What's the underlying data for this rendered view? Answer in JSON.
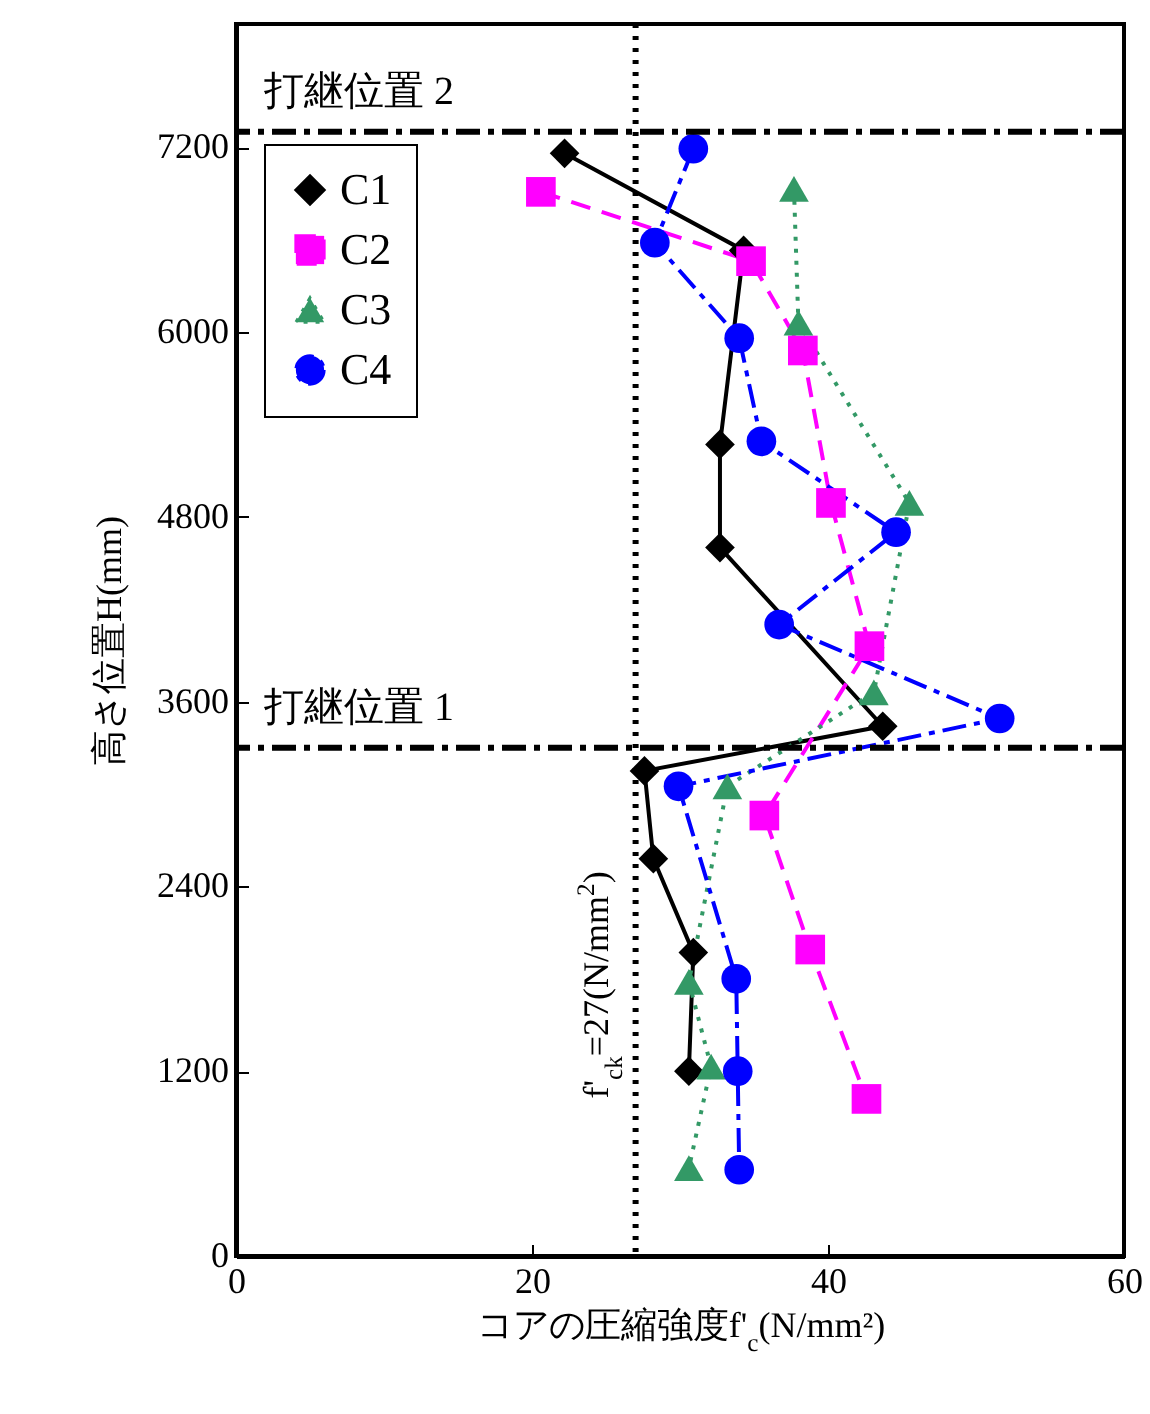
{
  "chart_data": {
    "type": "line",
    "xlabel": "コアの圧縮強度f'$_{c}$(N/mm²)",
    "ylabel": "高さ位置H(mm)",
    "xlim": [
      0,
      60
    ],
    "xticks": [
      0,
      20,
      40,
      60
    ],
    "ylim": [
      0,
      8000
    ],
    "yticks": [
      0,
      1200,
      2400,
      3600,
      4800,
      6000,
      7200
    ],
    "grid": false,
    "legend": "top left",
    "series": [
      {
        "name": "C1",
        "color": "#000000",
        "marker": "diamond",
        "line_style": "solid",
        "x": [
          22.2,
          34.3,
          32.7,
          32.7,
          43.7,
          27.6,
          28.2,
          30.9,
          30.6
        ],
        "values": [
          7160,
          6530,
          5270,
          4600,
          3440,
          3150,
          2580,
          1970,
          1200
        ]
      },
      {
        "name": "C2",
        "color": "#ff00ff",
        "marker": "square",
        "line_style": "dashed",
        "x": [
          20.6,
          34.8,
          38.3,
          40.2,
          42.8,
          35.7,
          38.8,
          42.6
        ],
        "values": [
          6910,
          6460,
          5880,
          4890,
          3960,
          2860,
          1990,
          1020
        ]
      },
      {
        "name": "C3",
        "color": "#339966",
        "marker": "triangle",
        "line_style": "dotted",
        "x": [
          37.7,
          38.0,
          45.5,
          43.1,
          33.2,
          30.6,
          32.1,
          30.6
        ],
        "values": [
          6930,
          6060,
          4890,
          3660,
          3050,
          1780,
          1230,
          570
        ]
      },
      {
        "name": "C4",
        "color": "#0000ff",
        "marker": "circle",
        "line_style": "dashdot",
        "x": [
          30.9,
          28.3,
          34.0,
          35.5,
          44.6,
          36.7,
          51.6,
          29.9,
          33.8,
          33.9,
          34.0
        ],
        "values": [
          7190,
          6580,
          5960,
          5290,
          4700,
          4100,
          3490,
          3050,
          1800,
          1200,
          560
        ]
      }
    ],
    "ref_lines": [
      {
        "axis": "y",
        "value": 3300,
        "label": "打継位置 1",
        "line_style": "dashdot",
        "color": "#000000"
      },
      {
        "axis": "y",
        "value": 7300,
        "label": "打継位置 2",
        "line_style": "dashdot",
        "color": "#000000"
      },
      {
        "axis": "x",
        "value": 27,
        "label": "f'$_{ck}$=27(N/mm$^{2}$)",
        "line_style": "dotted",
        "color": "#000000"
      }
    ]
  }
}
